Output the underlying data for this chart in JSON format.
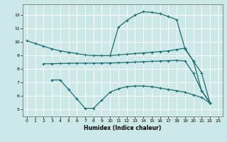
{
  "xlabel": "Humidex (Indice chaleur)",
  "bg_color": "#cce8e8",
  "grid_color": "#ffffff",
  "line_color": "#1a6e6e",
  "xlim": [
    -0.5,
    23.5
  ],
  "ylim": [
    4.5,
    12.8
  ],
  "xticks": [
    0,
    1,
    2,
    3,
    4,
    5,
    6,
    7,
    8,
    9,
    10,
    11,
    12,
    13,
    14,
    15,
    16,
    17,
    18,
    19,
    20,
    21,
    22,
    23
  ],
  "yticks": [
    5,
    6,
    7,
    8,
    9,
    10,
    11,
    12
  ],
  "curve1_x": [
    0,
    1,
    2,
    3,
    4,
    5,
    6,
    7,
    8,
    9,
    10,
    11,
    12,
    13,
    14,
    15,
    16,
    17,
    18,
    19,
    20,
    21,
    22
  ],
  "curve1_y": [
    10.1,
    9.9,
    9.7,
    9.5,
    9.35,
    9.25,
    9.15,
    9.05,
    9.0,
    9.0,
    9.0,
    9.05,
    9.1,
    9.15,
    9.2,
    9.25,
    9.3,
    9.35,
    9.45,
    9.55,
    8.6,
    7.7,
    5.5
  ],
  "curve2_x": [
    2,
    3,
    4,
    5,
    6,
    7,
    8,
    9,
    10,
    11,
    12,
    13,
    14,
    15,
    16,
    17,
    18,
    19,
    20,
    21,
    22
  ],
  "curve2_y": [
    8.4,
    8.4,
    8.42,
    8.43,
    8.44,
    8.44,
    8.44,
    8.45,
    8.46,
    8.47,
    8.5,
    8.52,
    8.55,
    8.58,
    8.6,
    8.62,
    8.65,
    8.6,
    7.7,
    6.4,
    5.5
  ],
  "curve3_x": [
    3,
    4,
    5,
    6,
    7,
    8,
    9,
    10,
    11,
    12,
    13,
    14,
    15,
    16,
    17,
    18,
    19,
    20,
    21,
    22
  ],
  "curve3_y": [
    7.2,
    7.2,
    6.5,
    5.8,
    5.1,
    5.1,
    5.7,
    6.3,
    6.55,
    6.7,
    6.75,
    6.75,
    6.7,
    6.6,
    6.5,
    6.4,
    6.3,
    6.1,
    5.9,
    5.5
  ],
  "curve4_x": [
    10,
    11,
    12,
    13,
    14,
    15,
    16,
    17,
    18,
    19,
    20,
    21,
    22
  ],
  "curve4_y": [
    9.0,
    11.1,
    11.6,
    12.0,
    12.25,
    12.2,
    12.1,
    11.9,
    11.65,
    9.5,
    8.6,
    6.4,
    5.5
  ]
}
